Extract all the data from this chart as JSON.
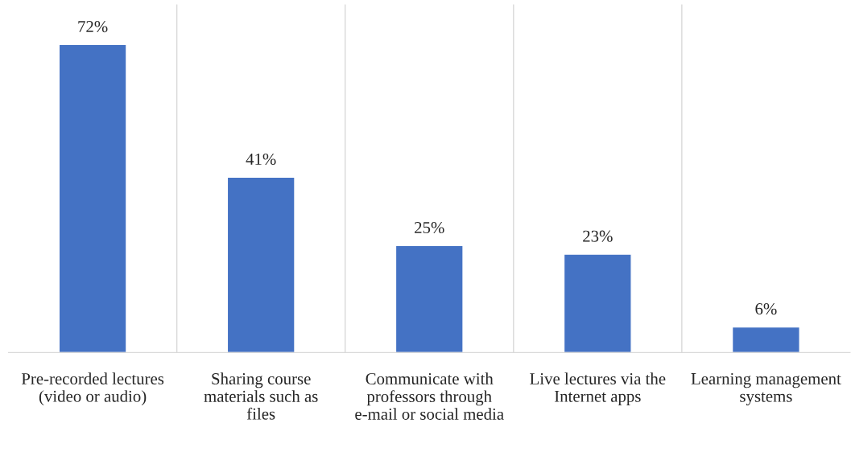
{
  "chart_data": {
    "type": "bar",
    "categories": [
      "Pre-recorded lectures (video or audio)",
      "Sharing course materials such as files",
      "Communicate with professors through e-mail or social media",
      "Live lectures via the Internet apps",
      "Learning management systems"
    ],
    "values": [
      72,
      41,
      25,
      23,
      6
    ],
    "value_labels": [
      "72%",
      "41%",
      "25%",
      "23%",
      "6%"
    ],
    "color": "#4472c4",
    "grid": "x"
  }
}
